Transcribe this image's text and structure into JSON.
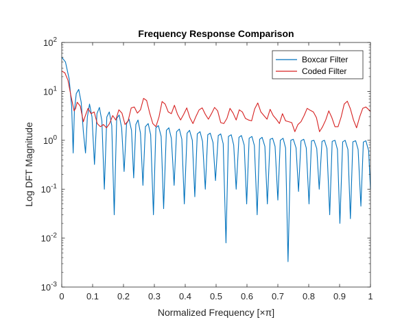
{
  "chart_data": {
    "type": "line",
    "title": "Frequency Response Comparison",
    "xlabel": "Normalized Frequency [×π]",
    "ylabel": "Log DFT Magnitude",
    "xlim": [
      0,
      1
    ],
    "ylim": [
      0.001,
      100
    ],
    "yscale": "log",
    "grid": false,
    "legend_position": "top-right",
    "x_ticks": [
      "0",
      "0.1",
      "0.2",
      "0.3",
      "0.4",
      "0.5",
      "0.6",
      "0.7",
      "0.8",
      "0.9",
      "1"
    ],
    "y_ticks": [
      {
        "base": "10",
        "exp": "-3",
        "value": 0.001
      },
      {
        "base": "10",
        "exp": "-2",
        "value": 0.01
      },
      {
        "base": "10",
        "exp": "-1",
        "value": 0.1
      },
      {
        "base": "10",
        "exp": "0",
        "value": 1
      },
      {
        "base": "10",
        "exp": "1",
        "value": 10
      },
      {
        "base": "10",
        "exp": "2",
        "value": 100
      }
    ],
    "series": [
      {
        "name": "Boxcar Filter",
        "color": "#0072BD",
        "x": [
          0,
          0.012,
          0.024,
          0.032,
          0.037,
          0.041,
          0.047,
          0.055,
          0.063,
          0.07,
          0.077,
          0.083,
          0.09,
          0.098,
          0.106,
          0.114,
          0.122,
          0.13,
          0.138,
          0.146,
          0.154,
          0.162,
          0.17,
          0.178,
          0.186,
          0.194,
          0.202,
          0.21,
          0.218,
          0.226,
          0.233,
          0.24,
          0.247,
          0.255,
          0.263,
          0.271,
          0.28,
          0.288,
          0.297,
          0.305,
          0.313,
          0.322,
          0.33,
          0.339,
          0.347,
          0.355,
          0.364,
          0.372,
          0.381,
          0.389,
          0.397,
          0.406,
          0.414,
          0.423,
          0.431,
          0.439,
          0.448,
          0.456,
          0.465,
          0.473,
          0.481,
          0.49,
          0.498,
          0.507,
          0.515,
          0.523,
          0.532,
          0.54,
          0.549,
          0.557,
          0.565,
          0.574,
          0.582,
          0.591,
          0.599,
          0.607,
          0.616,
          0.624,
          0.633,
          0.641,
          0.649,
          0.658,
          0.666,
          0.675,
          0.683,
          0.691,
          0.7,
          0.708,
          0.717,
          0.725,
          0.733,
          0.742,
          0.75,
          0.759,
          0.767,
          0.775,
          0.784,
          0.792,
          0.801,
          0.809,
          0.817,
          0.826,
          0.834,
          0.843,
          0.851,
          0.859,
          0.868,
          0.876,
          0.885,
          0.893,
          0.901,
          0.91,
          0.918,
          0.927,
          0.935,
          0.943,
          0.952,
          0.96,
          0.969,
          0.977,
          0.985,
          0.994,
          1.0
        ],
        "values": [
          50,
          40,
          18,
          5,
          0.55,
          4,
          9,
          11,
          6,
          1.5,
          0.55,
          3,
          5.5,
          3,
          0.32,
          3.5,
          4.7,
          2.5,
          0.1,
          3,
          3.8,
          2,
          0.03,
          2.8,
          3.3,
          1.8,
          0.23,
          2.2,
          2.7,
          1.6,
          0.17,
          2.1,
          2.6,
          1.4,
          0.12,
          1.9,
          2.2,
          1.3,
          0.03,
          1.8,
          2.0,
          1.2,
          0.04,
          1.6,
          1.8,
          1.1,
          0.12,
          1.5,
          1.7,
          1.05,
          0.05,
          1.4,
          1.6,
          1.0,
          0.07,
          1.35,
          1.5,
          0.95,
          0.1,
          1.3,
          1.4,
          0.9,
          0.15,
          1.25,
          1.35,
          0.85,
          0.008,
          1.2,
          1.3,
          0.8,
          0.1,
          1.15,
          1.25,
          0.8,
          0.05,
          1.1,
          1.2,
          0.78,
          0.03,
          1.05,
          1.15,
          0.75,
          0.05,
          1.05,
          1.1,
          0.75,
          0.06,
          1.0,
          1.1,
          0.7,
          0.0033,
          1.0,
          1.05,
          0.7,
          0.09,
          0.98,
          1.05,
          0.7,
          0.05,
          0.97,
          1.0,
          0.68,
          0.1,
          0.95,
          1.0,
          0.68,
          0.03,
          0.95,
          1.0,
          0.65,
          0.02,
          0.93,
          1.0,
          0.65,
          0.025,
          0.93,
          0.98,
          0.65,
          0.045,
          0.92,
          0.98,
          0.62,
          0.1
        ]
      },
      {
        "name": "Coded Filter",
        "color": "#D62020",
        "x": [
          0,
          0.01,
          0.02,
          0.03,
          0.04,
          0.045,
          0.05,
          0.06,
          0.07,
          0.075,
          0.085,
          0.095,
          0.105,
          0.115,
          0.125,
          0.135,
          0.145,
          0.155,
          0.165,
          0.175,
          0.185,
          0.195,
          0.205,
          0.215,
          0.225,
          0.235,
          0.245,
          0.255,
          0.265,
          0.275,
          0.285,
          0.295,
          0.305,
          0.315,
          0.325,
          0.335,
          0.345,
          0.355,
          0.365,
          0.375,
          0.385,
          0.395,
          0.405,
          0.415,
          0.425,
          0.435,
          0.445,
          0.455,
          0.465,
          0.475,
          0.485,
          0.495,
          0.505,
          0.515,
          0.525,
          0.535,
          0.545,
          0.555,
          0.565,
          0.575,
          0.585,
          0.595,
          0.605,
          0.615,
          0.625,
          0.635,
          0.645,
          0.655,
          0.665,
          0.675,
          0.685,
          0.695,
          0.705,
          0.715,
          0.725,
          0.735,
          0.745,
          0.755,
          0.765,
          0.775,
          0.785,
          0.795,
          0.805,
          0.815,
          0.825,
          0.835,
          0.845,
          0.855,
          0.865,
          0.875,
          0.885,
          0.895,
          0.905,
          0.915,
          0.925,
          0.935,
          0.945,
          0.955,
          0.965,
          0.975,
          0.985,
          0.995,
          1.0
        ],
        "values": [
          26,
          24,
          17,
          8,
          4,
          4.5,
          6,
          5,
          2.4,
          3,
          4.5,
          3.5,
          3.8,
          2.2,
          1.9,
          2.1,
          1.8,
          2.2,
          3.2,
          2.6,
          4.2,
          3.6,
          2.1,
          2.5,
          4.6,
          4.8,
          3.6,
          4.2,
          7.2,
          6.5,
          3.6,
          2.2,
          1.9,
          3,
          6.2,
          5.5,
          3.8,
          3.5,
          5.2,
          3.4,
          2.6,
          3.4,
          4.6,
          2.9,
          2.2,
          3.1,
          4.2,
          4.6,
          3.4,
          2.7,
          3.5,
          4.7,
          4,
          2.3,
          2.2,
          2.8,
          4.5,
          3.6,
          2.6,
          4.2,
          3.8,
          2.8,
          2.6,
          2.5,
          4.4,
          5.8,
          3.8,
          3.2,
          2.7,
          4.3,
          3.2,
          2.7,
          2.2,
          3.5,
          2.5,
          2.4,
          2.3,
          1.5,
          2.1,
          2.4,
          3.2,
          4.5,
          4.1,
          3.8,
          2.9,
          1.5,
          1.9,
          2.6,
          4.0,
          2.9,
          1.9,
          1.9,
          3.0,
          5.5,
          6.3,
          4.4,
          2.6,
          1.8,
          3.0,
          4.5,
          4.8,
          4.2,
          3.9
        ]
      }
    ]
  }
}
